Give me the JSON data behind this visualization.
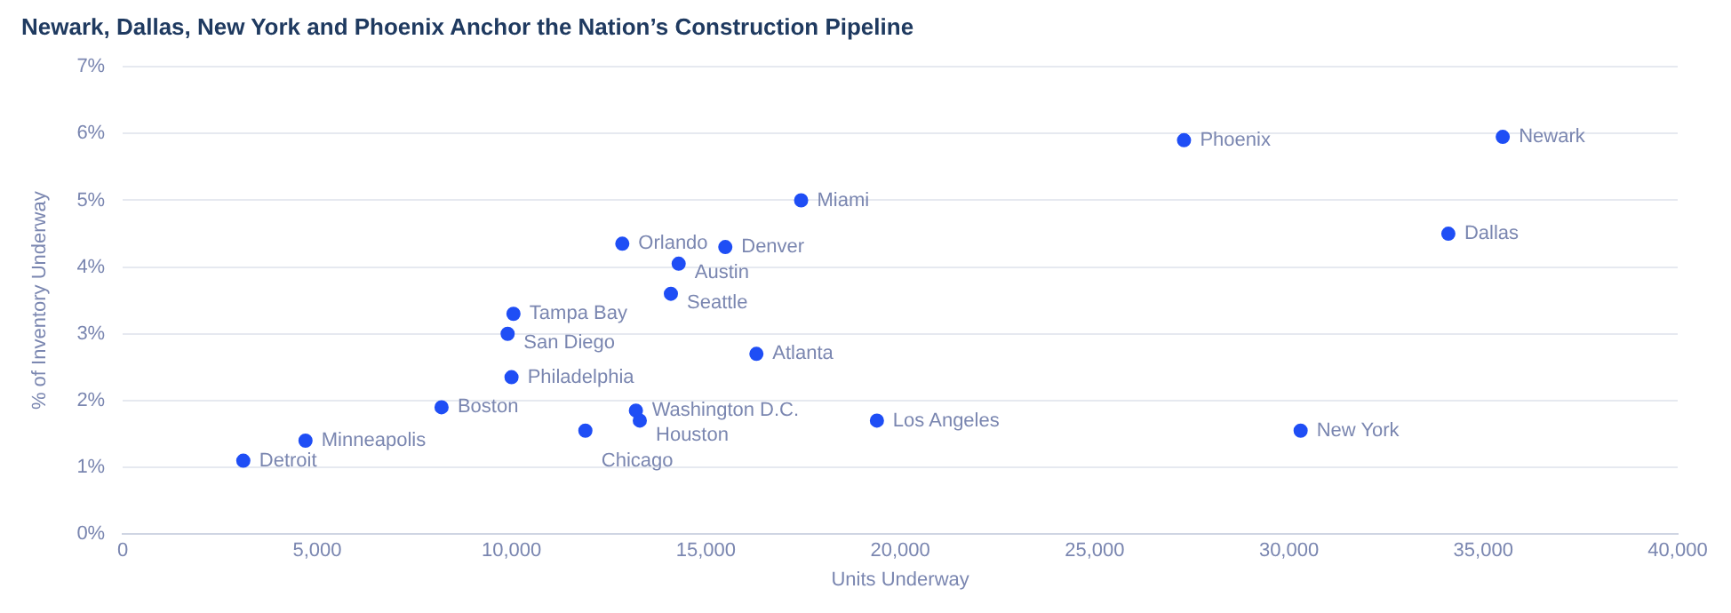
{
  "chart_data": {
    "type": "scatter",
    "title": "Newark, Dallas, New York and Phoenix Anchor the Nation’s Construction Pipeline",
    "xlabel": "Units Underway",
    "ylabel": "% of Inventory Underway",
    "x": [
      3100,
      4700,
      8200,
      10000,
      9900,
      10050,
      11900,
      13200,
      13300,
      12850,
      14100,
      14300,
      15500,
      17450,
      16300,
      19400,
      27300,
      30300,
      34100,
      35500
    ],
    "series": [
      {
        "color": "#1f4ef5",
        "values": [
          1.1,
          1.4,
          1.9,
          2.35,
          3.0,
          3.3,
          1.55,
          1.85,
          1.7,
          4.35,
          3.6,
          4.05,
          4.3,
          5.0,
          2.7,
          1.7,
          5.9,
          1.55,
          4.5,
          5.95
        ]
      }
    ],
    "annotations": [
      {
        "text": "Detroit",
        "x": 3100,
        "y": 1.1
      },
      {
        "text": "Minneapolis",
        "x": 4700,
        "y": 1.4
      },
      {
        "text": "Boston",
        "x": 8200,
        "y": 1.9
      },
      {
        "text": "Philadelphia",
        "x": 10000,
        "y": 2.35
      },
      {
        "text": "San Diego",
        "x": 9900,
        "y": 3.0
      },
      {
        "text": "Tampa Bay",
        "x": 10050,
        "y": 3.3
      },
      {
        "text": "Chicago",
        "x": 11900,
        "y": 1.55
      },
      {
        "text": "Washington D.C.",
        "x": 13200,
        "y": 1.85
      },
      {
        "text": "Houston",
        "x": 13300,
        "y": 1.7
      },
      {
        "text": "Orlando",
        "x": 12850,
        "y": 4.35
      },
      {
        "text": "Seattle",
        "x": 14100,
        "y": 3.6
      },
      {
        "text": "Austin",
        "x": 14300,
        "y": 4.05
      },
      {
        "text": "Denver",
        "x": 15500,
        "y": 4.3
      },
      {
        "text": "Miami",
        "x": 17450,
        "y": 5.0
      },
      {
        "text": "Atlanta",
        "x": 16300,
        "y": 2.7
      },
      {
        "text": "Los Angeles",
        "x": 19400,
        "y": 1.7
      },
      {
        "text": "Phoenix",
        "x": 27300,
        "y": 5.9
      },
      {
        "text": "New York",
        "x": 30300,
        "y": 1.55
      },
      {
        "text": "Dallas",
        "x": 34100,
        "y": 4.5
      },
      {
        "text": "Newark",
        "x": 35500,
        "y": 5.95
      }
    ],
    "xlim": [
      0,
      40000
    ],
    "xticks": [
      0,
      {
        "value": 5000,
        "label": "5,000"
      },
      {
        "value": 10000,
        "label": "10,000"
      },
      {
        "value": 15000,
        "label": "15,000"
      },
      {
        "value": 20000,
        "label": "20,000"
      },
      {
        "value": 25000,
        "label": "25,000"
      },
      {
        "value": 30000,
        "label": "30,000"
      },
      {
        "value": 35000,
        "label": "35,000"
      },
      {
        "value": 40000,
        "label": "40,000"
      }
    ],
    "ylim": [
      0,
      7
    ],
    "yticks": [
      {
        "value": 0,
        "label": "0%"
      },
      {
        "value": 1,
        "label": "1%"
      },
      {
        "value": 2,
        "label": "2%"
      },
      {
        "value": 3,
        "label": "3%"
      },
      {
        "value": 4,
        "label": "4%"
      },
      {
        "value": 5,
        "label": "5%"
      },
      {
        "value": 6,
        "label": "6%"
      },
      {
        "value": 7,
        "label": "7%"
      }
    ],
    "grid": "y",
    "legend": false,
    "marker": "circle"
  }
}
